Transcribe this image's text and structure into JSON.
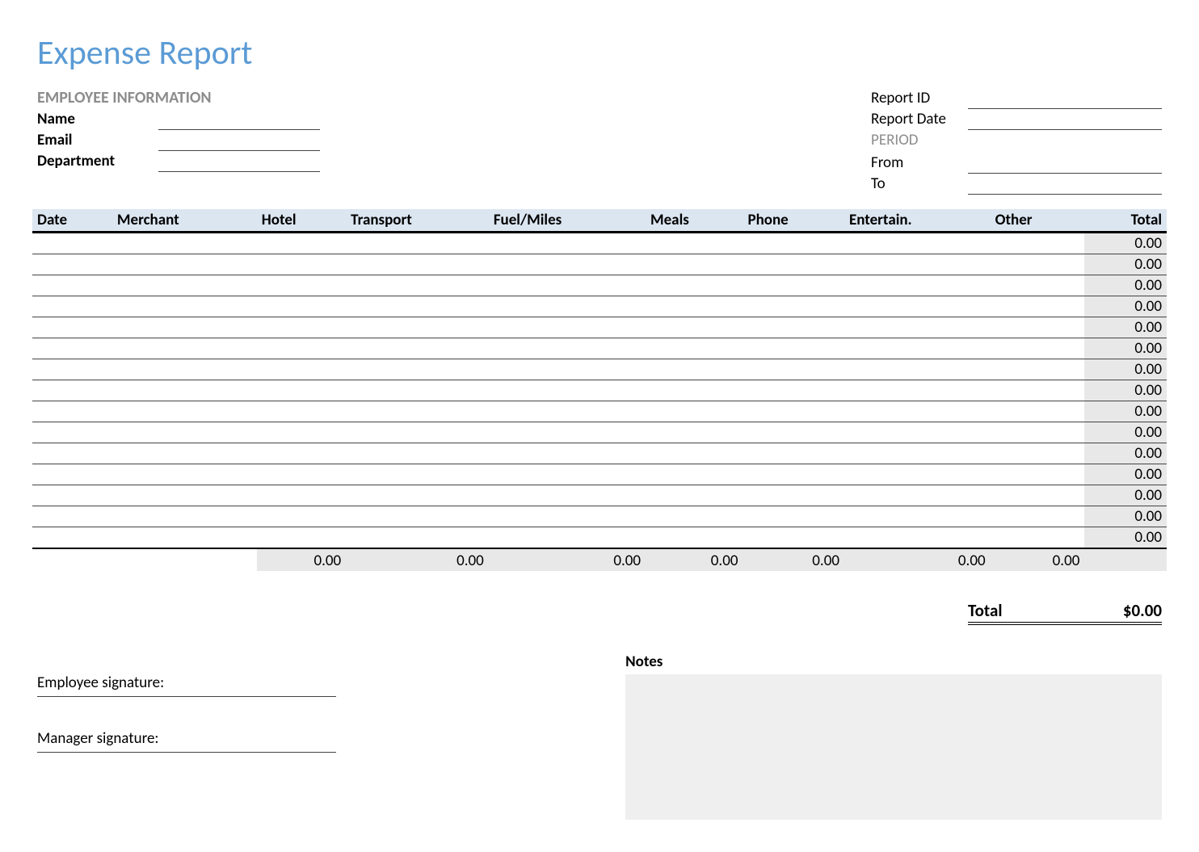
{
  "title": "Expense Report",
  "title_color": "#5b9bd5",
  "header_bg": "#dce6f1",
  "total_col_bg": "#e8e8e8",
  "employee_section": {
    "heading": "EMPLOYEE INFORMATION",
    "fields": [
      {
        "label": "Name",
        "value": ""
      },
      {
        "label": "Email",
        "value": ""
      },
      {
        "label": "Department",
        "value": ""
      }
    ]
  },
  "report_section": {
    "fields": [
      {
        "label": "Report ID",
        "value": ""
      },
      {
        "label": "Report Date",
        "value": ""
      }
    ],
    "period_heading": "PERIOD",
    "period_fields": [
      {
        "label": "From",
        "value": ""
      },
      {
        "label": "To",
        "value": ""
      }
    ]
  },
  "table": {
    "columns": [
      "Date",
      "Merchant",
      "Hotel",
      "Transport",
      "Fuel/Miles",
      "Meals",
      "Phone",
      "Entertain.",
      "Other",
      "Total"
    ],
    "row_count": 15,
    "row_total_value": "0.00",
    "column_sums": [
      "",
      "",
      "0.00",
      "0.00",
      "0.00",
      "0.00",
      "0.00",
      "0.00",
      "0.00",
      ""
    ]
  },
  "grand_total": {
    "label": "Total",
    "value": "$0.00"
  },
  "signatures": {
    "employee": "Employee signature:",
    "manager": "Manager signature:"
  },
  "notes_label": "Notes"
}
